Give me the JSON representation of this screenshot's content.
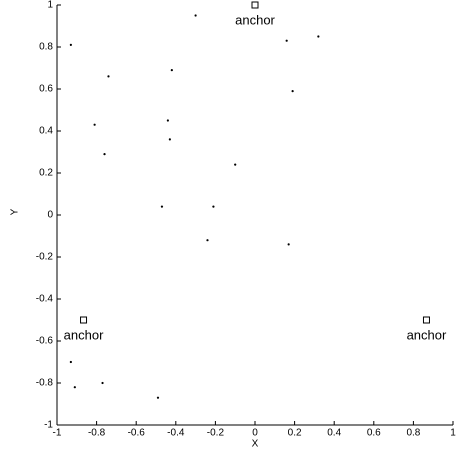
{
  "chart_data": {
    "type": "scatter",
    "xlabel": "X",
    "ylabel": "Y",
    "xlim": [
      -1,
      1
    ],
    "ylim": [
      -1,
      1
    ],
    "xticks": [
      -1,
      -0.8,
      -0.6,
      -0.4,
      -0.2,
      0,
      0.2,
      0.4,
      0.6,
      0.8,
      1
    ],
    "yticks": [
      -1,
      -0.8,
      -0.6,
      -0.4,
      -0.2,
      0,
      0.2,
      0.4,
      0.6,
      0.8,
      1
    ],
    "points": {
      "color": "#000000",
      "x": [
        -0.3,
        -0.93,
        0.16,
        0.32,
        -0.74,
        -0.42,
        0.19,
        -0.81,
        -0.44,
        -0.43,
        -0.76,
        -0.1,
        -0.47,
        -0.21,
        -0.24,
        0.17,
        -0.93,
        -0.91,
        -0.77,
        -0.49
      ],
      "y": [
        0.95,
        0.81,
        0.83,
        0.85,
        0.66,
        0.69,
        0.59,
        0.43,
        0.45,
        0.36,
        0.29,
        0.24,
        0.04,
        0.04,
        -0.12,
        -0.14,
        -0.7,
        -0.82,
        -0.8,
        -0.87
      ]
    },
    "anchors": {
      "color": "#000000",
      "x": [
        0,
        -0.866,
        0.866
      ],
      "y": [
        1,
        -0.5,
        -0.5
      ],
      "labels": [
        "anchor",
        "anchor",
        "anchor"
      ]
    }
  }
}
